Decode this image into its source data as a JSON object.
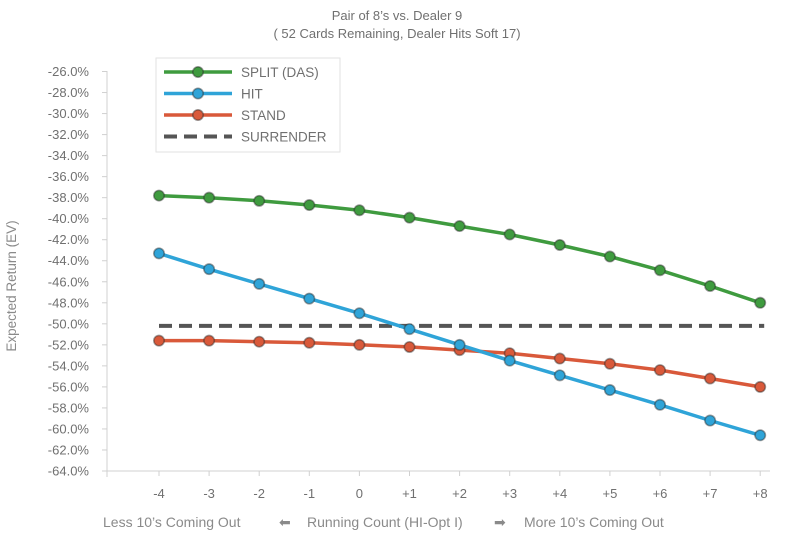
{
  "chart_data": {
    "type": "line",
    "title": "Pair of 8’s vs. Dealer 9",
    "subtitle": "( 52 Cards Remaining, Dealer Hits Soft 17)",
    "ylabel": "Expected Return (EV)",
    "xlabel_left": "Less 10’s Coming Out",
    "xlabel_center": "Running Count (HI-Opt I)",
    "xlabel_right": "More 10’s Coming Out",
    "arrow_left": "⬅",
    "arrow_right": "➡",
    "categories": [
      "-4",
      "-3",
      "-2",
      "-1",
      "0",
      "+1",
      "+2",
      "+3",
      "+4",
      "+5",
      "+6",
      "+7",
      "+8"
    ],
    "ylim": [
      -64.0,
      -25.0
    ],
    "yticks": [
      "-26.0%",
      "-28.0%",
      "-30.0%",
      "-32.0%",
      "-34.0%",
      "-36.0%",
      "-38.0%",
      "-40.0%",
      "-42.0%",
      "-44.0%",
      "-46.0%",
      "-48.0%",
      "-50.0%",
      "-52.0%",
      "-54.0%",
      "-56.0%",
      "-58.0%",
      "-60.0%",
      "-62.0%",
      "-64.0%"
    ],
    "grid": false,
    "legend_position": "top-left",
    "series": [
      {
        "name": "SPLIT (DAS)",
        "color": "#3f9b3f",
        "marker": true,
        "dash": false,
        "values": [
          -37.8,
          -38.0,
          -38.3,
          -38.7,
          -39.2,
          -39.9,
          -40.7,
          -41.5,
          -42.5,
          -43.6,
          -44.9,
          -46.4,
          -48.0
        ]
      },
      {
        "name": "HIT",
        "color": "#2fa4d8",
        "marker": true,
        "dash": false,
        "values": [
          -43.3,
          -44.8,
          -46.2,
          -47.6,
          -49.0,
          -50.5,
          -52.0,
          -53.5,
          -54.9,
          -56.3,
          -57.7,
          -59.2,
          -60.6
        ]
      },
      {
        "name": "STAND",
        "color": "#d9593a",
        "marker": true,
        "dash": false,
        "values": [
          -51.6,
          -51.6,
          -51.7,
          -51.8,
          -52.0,
          -52.2,
          -52.5,
          -52.8,
          -53.3,
          -53.8,
          -54.4,
          -55.2,
          -56.0
        ]
      },
      {
        "name": "SURRENDER",
        "color": "#555555",
        "marker": false,
        "dash": true,
        "values": [
          -50.2,
          -50.2,
          -50.2,
          -50.2,
          -50.2,
          -50.2,
          -50.2,
          -50.2,
          -50.2,
          -50.2,
          -50.2,
          -50.2,
          -50.2
        ]
      }
    ]
  }
}
